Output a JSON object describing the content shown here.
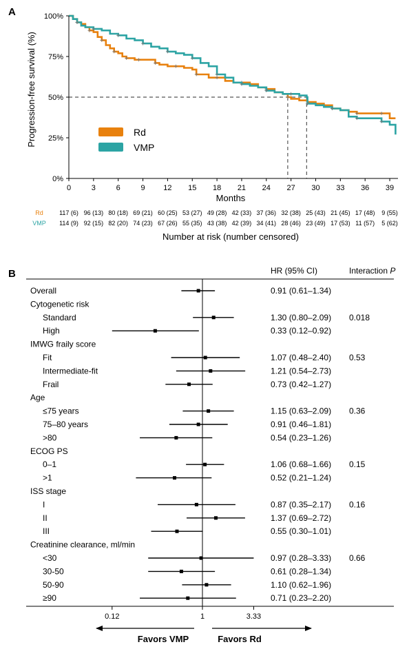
{
  "colors": {
    "rd": "#E8810E",
    "vmp": "#2CA4A4",
    "panel_label": "#1F4E8C"
  },
  "panel_a": {
    "label": "A",
    "chart_data": {
      "type": "line",
      "ylabel": "Progression-free survival (%)",
      "xlabel": "Months",
      "ylim": [
        0,
        100
      ],
      "xlim": [
        0,
        40
      ],
      "y_ticks": [
        "0%",
        "25%",
        "50%",
        "75%",
        "100%"
      ],
      "x_ticks": [
        "0",
        "3",
        "6",
        "9",
        "12",
        "15",
        "18",
        "21",
        "24",
        "27",
        "30",
        "33",
        "36",
        "39"
      ],
      "legend_position": "center-left",
      "median_reference": {
        "y": 50,
        "rd_median_months": 26.6,
        "vmp_median_months": 28.9
      },
      "series": [
        {
          "name": "Rd",
          "color_key": "rd",
          "x": [
            0,
            0.5,
            1,
            1.5,
            2,
            2.5,
            3,
            3.5,
            4,
            4.5,
            5,
            5.5,
            6,
            6.5,
            7,
            7.5,
            8,
            8.5,
            9,
            10,
            10.5,
            11,
            12,
            13,
            14,
            15,
            15.5,
            16,
            17,
            18,
            19,
            20,
            21,
            22,
            23,
            24,
            25,
            26,
            26.6,
            27,
            28,
            29,
            30,
            31,
            32,
            33,
            34,
            35,
            36,
            37,
            38,
            39,
            39.7
          ],
          "y": [
            100,
            98,
            96,
            95,
            93,
            91,
            90,
            87,
            85,
            82,
            80,
            78,
            77,
            75,
            74,
            74,
            73,
            73,
            73,
            73,
            71,
            70,
            69,
            69,
            68,
            67,
            64,
            64,
            62,
            62,
            60,
            59,
            59,
            58,
            56,
            55,
            53,
            52,
            50,
            49,
            48,
            47,
            46,
            45,
            43,
            42,
            41,
            40,
            40,
            40,
            40,
            37,
            37
          ]
        },
        {
          "name": "VMP",
          "color_key": "vmp",
          "x": [
            0,
            0.5,
            1,
            1.5,
            2,
            3,
            4,
            5,
            6,
            7,
            8,
            9,
            10,
            11,
            12,
            13,
            14,
            15,
            16,
            17,
            18,
            19,
            20,
            21,
            22,
            23,
            24,
            25,
            26,
            27,
            28,
            28.9,
            29,
            30,
            31,
            32,
            33,
            34,
            35,
            36,
            37,
            38,
            39,
            39.7
          ],
          "y": [
            100,
            98,
            96,
            94,
            93,
            92,
            91,
            89,
            88,
            86,
            85,
            83,
            81,
            80,
            78,
            77,
            76,
            74,
            71,
            69,
            64,
            62,
            59,
            58,
            57,
            56,
            54,
            53,
            52,
            52,
            51,
            50,
            46,
            45,
            44,
            43,
            42,
            38,
            37,
            37,
            37,
            35,
            33,
            27
          ]
        }
      ]
    },
    "risk_table": {
      "title": "Number at risk (number censored)",
      "rows": [
        {
          "name": "Rd",
          "values": [
            "117 (6)",
            "96 (13)",
            "80 (18)",
            "69 (21)",
            "60 (25)",
            "53 (27)",
            "49 (28)",
            "42 (33)",
            "37 (36)",
            "32 (38)",
            "25 (43)",
            "21 (45)",
            "17 (48)",
            "9 (55)"
          ]
        },
        {
          "name": "VMP",
          "values": [
            "114 (9)",
            "92 (15)",
            "82 (20)",
            "74 (23)",
            "67 (26)",
            "55 (35)",
            "43 (38)",
            "42 (39)",
            "34 (41)",
            "28 (46)",
            "23 (49)",
            "17 (53)",
            "11 (57)",
            "5 (62)"
          ]
        }
      ]
    }
  },
  "panel_b": {
    "label": "B",
    "chart_data": {
      "type": "forest",
      "col_hr": "HR (95% CI)",
      "col_interaction": "Interaction",
      "col_interaction_p": "P",
      "x_scale": "log",
      "xlim": [
        0.1,
        5.5
      ],
      "x_ticks": [
        "0.12",
        "1",
        "3.33"
      ],
      "reference_value": 1,
      "favors_left": "Favors VMP",
      "favors_right": "Favors Rd",
      "rows": [
        {
          "label": "Overall",
          "indent": false,
          "hr": 0.91,
          "lo": 0.61,
          "hi": 1.34,
          "hr_text": "0.91 (0.61–1.34)",
          "p": ""
        },
        {
          "label": "Cytogenetic risk",
          "indent": false,
          "header": true
        },
        {
          "label": "Standard",
          "indent": true,
          "hr": 1.3,
          "lo": 0.8,
          "hi": 2.09,
          "hr_text": "1.30 (0.80–2.09)",
          "p": "0.018"
        },
        {
          "label": "High",
          "indent": true,
          "hr": 0.33,
          "lo": 0.12,
          "hi": 0.92,
          "hr_text": "0.33 (0.12–0.92)",
          "p": ""
        },
        {
          "label": "IMWG fraily score",
          "indent": false,
          "header": true
        },
        {
          "label": "Fit",
          "indent": true,
          "hr": 1.07,
          "lo": 0.48,
          "hi": 2.4,
          "hr_text": "1.07 (0.48–2.40)",
          "p": "0.53"
        },
        {
          "label": "Intermediate-fit",
          "indent": true,
          "hr": 1.21,
          "lo": 0.54,
          "hi": 2.73,
          "hr_text": "1.21 (0.54–2.73)",
          "p": ""
        },
        {
          "label": "Frail",
          "indent": true,
          "hr": 0.73,
          "lo": 0.42,
          "hi": 1.27,
          "hr_text": "0.73 (0.42–1.27)",
          "p": ""
        },
        {
          "label": "Age",
          "indent": false,
          "header": true
        },
        {
          "label": "≤75 years",
          "indent": true,
          "hr": 1.15,
          "lo": 0.63,
          "hi": 2.09,
          "hr_text": "1.15 (0.63–2.09)",
          "p": "0.36"
        },
        {
          "label": "75–80 years",
          "indent": true,
          "hr": 0.91,
          "lo": 0.46,
          "hi": 1.81,
          "hr_text": "0.91 (0.46–1.81)",
          "p": ""
        },
        {
          "label": ">80",
          "indent": true,
          "hr": 0.54,
          "lo": 0.23,
          "hi": 1.26,
          "hr_text": "0.54 (0.23–1.26)",
          "p": ""
        },
        {
          "label": "ECOG PS",
          "indent": false,
          "header": true
        },
        {
          "label": "0–1",
          "indent": true,
          "hr": 1.06,
          "lo": 0.68,
          "hi": 1.66,
          "hr_text": "1.06 (0.68–1.66)",
          "p": "0.15"
        },
        {
          "label": ">1",
          "indent": true,
          "hr": 0.52,
          "lo": 0.21,
          "hi": 1.24,
          "hr_text": "0.52 (0.21–1.24)",
          "p": ""
        },
        {
          "label": "ISS stage",
          "indent": false,
          "header": true
        },
        {
          "label": "I",
          "indent": true,
          "hr": 0.87,
          "lo": 0.35,
          "hi": 2.17,
          "hr_text": "0.87 (0.35–2.17)",
          "p": "0.16"
        },
        {
          "label": "II",
          "indent": true,
          "hr": 1.37,
          "lo": 0.69,
          "hi": 2.72,
          "hr_text": "1.37 (0.69–2.72)",
          "p": ""
        },
        {
          "label": "III",
          "indent": true,
          "hr": 0.55,
          "lo": 0.3,
          "hi": 1.01,
          "hr_text": "0.55 (0.30–1.01)",
          "p": ""
        },
        {
          "label": "Creatinine clearance, ml/min",
          "indent": false,
          "header": true
        },
        {
          "label": "<30",
          "indent": true,
          "hr": 0.97,
          "lo": 0.28,
          "hi": 3.33,
          "hr_text": "0.97 (0.28–3.33)",
          "p": "0.66"
        },
        {
          "label": "30-50",
          "indent": true,
          "hr": 0.61,
          "lo": 0.28,
          "hi": 1.34,
          "hr_text": "0.61 (0.28–1.34)",
          "p": ""
        },
        {
          "label": "50-90",
          "indent": true,
          "hr": 1.1,
          "lo": 0.62,
          "hi": 1.96,
          "hr_text": "1.10 (0.62–1.96)",
          "p": ""
        },
        {
          "label": "≥90",
          "indent": true,
          "hr": 0.71,
          "lo": 0.23,
          "hi": 2.2,
          "hr_text": "0.71 (0.23–2.20)",
          "p": ""
        }
      ]
    }
  }
}
